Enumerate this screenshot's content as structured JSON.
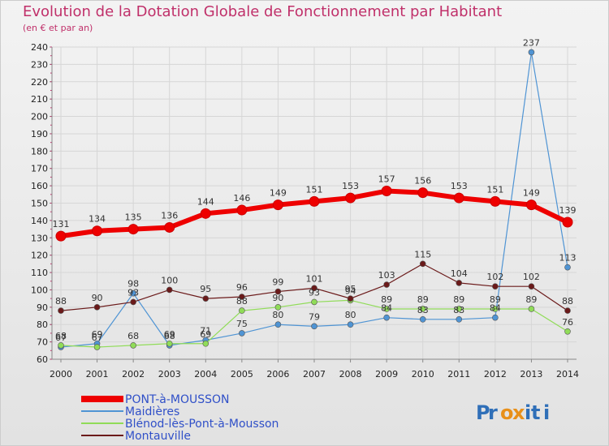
{
  "chart_data": {
    "type": "line",
    "title": "Evolution de la Dotation Globale de Fonctionnement par Habitant",
    "subtitle": "(en € et par an)",
    "categories": [
      "2000",
      "2001",
      "2002",
      "2003",
      "2004",
      "2005",
      "2006",
      "2007",
      "2008",
      "2009",
      "2010",
      "2011",
      "2012",
      "2013",
      "2014"
    ],
    "ylim": [
      60,
      240
    ],
    "yticks": [
      60,
      70,
      80,
      90,
      100,
      110,
      120,
      130,
      140,
      150,
      160,
      170,
      180,
      190,
      200,
      210,
      220,
      230,
      240
    ],
    "grid": true,
    "legend_position": "bottom-left",
    "series": [
      {
        "name": "PONT-à-MOUSSON",
        "color": "#ee0000",
        "values": [
          131,
          134,
          135,
          136,
          144,
          146,
          149,
          151,
          153,
          157,
          156,
          153,
          151,
          149,
          139
        ]
      },
      {
        "name": "Maidières",
        "color": "#4f94d4",
        "values": [
          67,
          69,
          98,
          68,
          71,
          75,
          80,
          79,
          80,
          84,
          83,
          83,
          84,
          237,
          113
        ]
      },
      {
        "name": "Blénod-lès-Pont-à-Mousson",
        "color": "#90dc58",
        "values": [
          68,
          67,
          68,
          69,
          69,
          88,
          90,
          93,
          94,
          89,
          89,
          89,
          89,
          89,
          76
        ]
      },
      {
        "name": "Montauville",
        "color": "#6b1a1a",
        "values": [
          88,
          90,
          93,
          100,
          95,
          96,
          99,
          101,
          95,
          103,
          115,
          104,
          102,
          102,
          88
        ]
      }
    ]
  },
  "logo": {
    "text": "Proxiti"
  }
}
